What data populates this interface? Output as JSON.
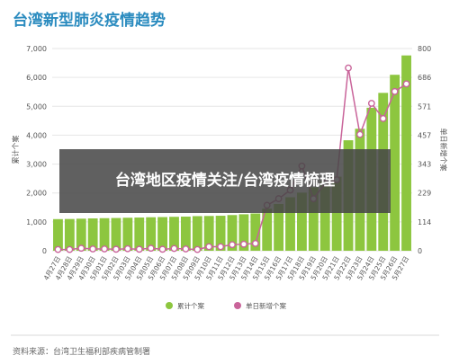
{
  "header": {
    "title": "台湾新型肺炎疫情趋势"
  },
  "overlay": {
    "text": "台湾地区疫情关注/台湾疫情梳理"
  },
  "footer": {
    "source": "资料来源：台湾卫生福利部疾病管制署"
  },
  "colors": {
    "bar": "#8dc63f",
    "line": "#c9649a",
    "grid": "#e6e6e6",
    "axis_text": "#555555"
  },
  "chart_data": {
    "type": "bar",
    "title": "台湾新型肺炎疫情趋势",
    "categories": [
      "4月27日",
      "4月28日",
      "4月29日",
      "4月30日",
      "5月01日",
      "5月02日",
      "5月03日",
      "5月04日",
      "5月05日",
      "5月06日",
      "5月07日",
      "5月08日",
      "5月09日",
      "5月10日",
      "5月11日",
      "5月12日",
      "5月13日",
      "5月14日",
      "5月15日",
      "5月16日",
      "5月17日",
      "5月18日",
      "5月19日",
      "5月20日",
      "5月21日",
      "5月22日",
      "5月23日",
      "5月24日",
      "5月25日",
      "5月26日",
      "5月27日"
    ],
    "series": [
      {
        "name": "累计个案",
        "type": "bar",
        "axis": "left",
        "values": [
          1095,
          1099,
          1110,
          1120,
          1128,
          1134,
          1143,
          1150,
          1160,
          1166,
          1175,
          1182,
          1199,
          1204,
          1212,
          1236,
          1263,
          1291,
          1459,
          1619,
          1851,
          2011,
          2196,
          2402,
          2563,
          3825,
          4223,
          4950,
          5465,
          6091,
          6761
        ]
      },
      {
        "name": "单日新增个案",
        "type": "line",
        "axis": "right",
        "values": [
          5,
          5,
          10,
          7,
          7,
          6,
          8,
          6,
          10,
          6,
          9,
          7,
          5,
          16,
          16,
          24,
          26,
          29,
          180,
          206,
          240,
          335,
          206,
          267,
          281,
          723,
          460,
          583,
          523,
          630,
          660
        ]
      }
    ],
    "y_left": {
      "label": "累计个案",
      "ticks": [
        0,
        1000,
        2000,
        3000,
        4000,
        5000,
        6000,
        7000
      ],
      "ylim": [
        0,
        7000
      ]
    },
    "y_right": {
      "label": "单日新增个案",
      "ticks": [
        0,
        114,
        229,
        343,
        457,
        571,
        686,
        800
      ],
      "ylim": [
        0,
        800
      ]
    },
    "grid": true,
    "legend": {
      "position": "bottom-center",
      "entries": [
        "累计个案",
        "单日新增个案"
      ]
    }
  }
}
